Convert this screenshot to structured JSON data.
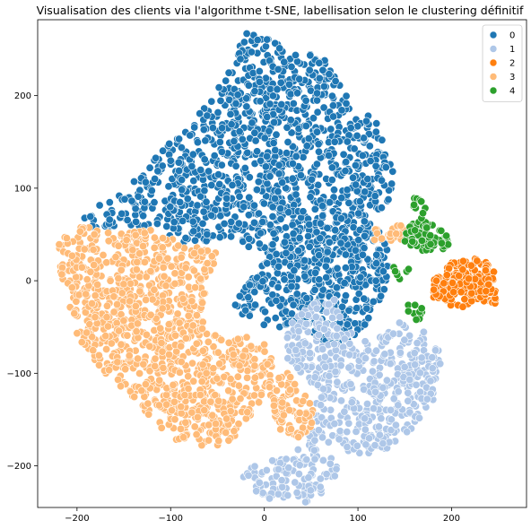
{
  "chart_data": {
    "type": "scatter",
    "title": "Visualisation des clients via l'algorithme t-SNE, labellisation selon le clustering définitif",
    "xlabel": "",
    "ylabel": "",
    "xlim": [
      -242,
      280
    ],
    "ylim": [
      -245,
      282
    ],
    "xticks": [
      -200,
      -100,
      0,
      100,
      200
    ],
    "yticks": [
      -200,
      -100,
      0,
      100,
      200
    ],
    "grid": false,
    "legend_position": "top-right",
    "marker_edge_color": "#ffffff",
    "series": [
      {
        "name": "0",
        "color": "#1f77b4",
        "regions": [
          {
            "points": [
              [
                -20,
                270
              ],
              [
                70,
                240
              ],
              [
                85,
                205
              ],
              [
                120,
                170
              ],
              [
                140,
                110
              ],
              [
                130,
                80
              ],
              [
                120,
                70
              ],
              [
                80,
                70
              ],
              [
                55,
                75
              ],
              [
                40,
                55
              ],
              [
                25,
                25
              ],
              [
                -5,
                30
              ],
              [
                -40,
                45
              ],
              [
                -80,
                40
              ],
              [
                -140,
                60
              ],
              [
                -195,
                55
              ],
              [
                -190,
                75
              ],
              [
                -150,
                95
              ],
              [
                -110,
                140
              ],
              [
                -70,
                180
              ],
              [
                -40,
                220
              ]
            ],
            "count": 1100
          },
          {
            "points": [
              [
                55,
                75
              ],
              [
                100,
                70
              ],
              [
                125,
                55
              ],
              [
                135,
                25
              ],
              [
                130,
                -10
              ],
              [
                120,
                -30
              ],
              [
                100,
                -60
              ],
              [
                80,
                -75
              ],
              [
                60,
                -65
              ],
              [
                40,
                -45
              ],
              [
                15,
                -55
              ],
              [
                -20,
                -40
              ],
              [
                -35,
                -25
              ],
              [
                -10,
                10
              ],
              [
                20,
                40
              ]
            ],
            "count": 520
          }
        ]
      },
      {
        "name": "1",
        "color": "#aec7e8",
        "regions": [
          {
            "points": [
              [
                25,
                -50
              ],
              [
                50,
                -25
              ],
              [
                75,
                -20
              ],
              [
                95,
                -60
              ],
              [
                120,
                -60
              ],
              [
                145,
                -45
              ],
              [
                170,
                -55
              ],
              [
                185,
                -70
              ],
              [
                195,
                -115
              ],
              [
                175,
                -140
              ],
              [
                160,
                -160
              ],
              [
                135,
                -180
              ],
              [
                110,
                -195
              ],
              [
                90,
                -185
              ],
              [
                55,
                -170
              ],
              [
                80,
                -200
              ],
              [
                70,
                -225
              ],
              [
                45,
                -240
              ],
              [
                0,
                -235
              ],
              [
                -25,
                -215
              ],
              [
                -20,
                -200
              ],
              [
                30,
                -190
              ],
              [
                45,
                -160
              ],
              [
                55,
                -125
              ],
              [
                40,
                -100
              ],
              [
                20,
                -95
              ]
            ],
            "count": 620
          }
        ]
      },
      {
        "name": "2",
        "color": "#ff7f0e",
        "regions": [
          {
            "points": [
              [
                180,
                0
              ],
              [
                200,
                20
              ],
              [
                230,
                25
              ],
              [
                245,
                15
              ],
              [
                248,
                -25
              ],
              [
                225,
                -25
              ],
              [
                205,
                -30
              ],
              [
                180,
                -20
              ]
            ],
            "count": 170
          }
        ]
      },
      {
        "name": "3",
        "color": "#ffbb78",
        "regions": [
          {
            "points": [
              [
                -230,
                40
              ],
              [
                -195,
                60
              ],
              [
                -160,
                50
              ],
              [
                -120,
                55
              ],
              [
                -85,
                40
              ],
              [
                -50,
                30
              ],
              [
                -60,
                0
              ],
              [
                -70,
                -40
              ],
              [
                -50,
                -60
              ],
              [
                -30,
                -55
              ],
              [
                -5,
                -60
              ],
              [
                10,
                -85
              ],
              [
                5,
                -110
              ],
              [
                -10,
                -140
              ],
              [
                -30,
                -170
              ],
              [
                -55,
                -180
              ],
              [
                -90,
                -175
              ],
              [
                -110,
                -160
              ],
              [
                -130,
                -140
              ],
              [
                -150,
                -120
              ],
              [
                -170,
                -100
              ],
              [
                -195,
                -75
              ],
              [
                -205,
                -40
              ],
              [
                -215,
                0
              ]
            ],
            "count": 1050
          },
          {
            "points": [
              [
                5,
                -105
              ],
              [
                25,
                -100
              ],
              [
                40,
                -120
              ],
              [
                55,
                -135
              ],
              [
                50,
                -160
              ],
              [
                35,
                -170
              ],
              [
                15,
                -160
              ],
              [
                5,
                -135
              ]
            ],
            "count": 90
          },
          {
            "points": [
              [
                120,
                60
              ],
              [
                150,
                60
              ],
              [
                150,
                45
              ],
              [
                130,
                40
              ],
              [
                115,
                45
              ]
            ],
            "count": 22
          }
        ]
      },
      {
        "name": "4",
        "color": "#2ca02c",
        "regions": [
          {
            "points": [
              [
                150,
                55
              ],
              [
                170,
                70
              ],
              [
                195,
                50
              ],
              [
                198,
                35
              ],
              [
                170,
                30
              ],
              [
                148,
                40
              ]
            ],
            "count": 75
          },
          {
            "points": [
              [
                158,
                90
              ],
              [
                172,
                90
              ],
              [
                172,
                72
              ],
              [
                160,
                72
              ]
            ],
            "count": 10
          },
          {
            "points": [
              [
                138,
                15
              ],
              [
                155,
                15
              ],
              [
                155,
                5
              ],
              [
                140,
                0
              ]
            ],
            "count": 8
          },
          {
            "points": [
              [
                150,
                -20
              ],
              [
                168,
                -25
              ],
              [
                170,
                -45
              ],
              [
                155,
                -40
              ]
            ],
            "count": 10
          }
        ]
      }
    ]
  }
}
